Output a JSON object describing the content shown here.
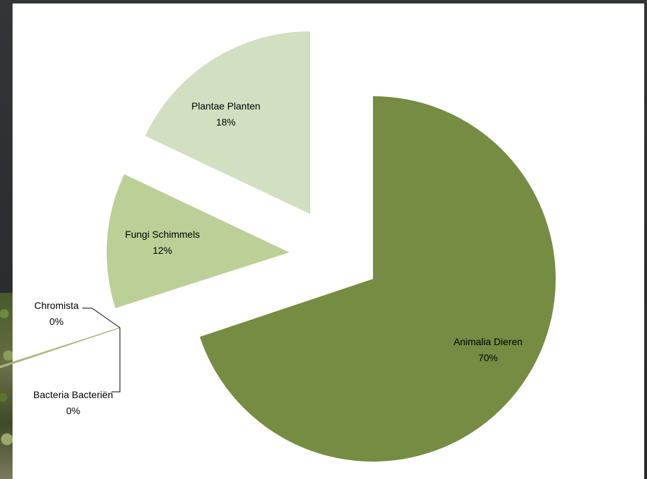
{
  "chart_data": {
    "type": "pie",
    "title": "",
    "exploded": true,
    "slices": [
      {
        "label": "Animalia Dieren",
        "percent_label": "70%",
        "value": 70,
        "color": "#758c42"
      },
      {
        "label": "Bacteria Bacteriën",
        "percent_label": "0%",
        "value": 0,
        "color": "#8a9a5b"
      },
      {
        "label": "Chromista",
        "percent_label": "0%",
        "value": 0.2,
        "color": "#a8b77f"
      },
      {
        "label": "Fungi Schimmels",
        "percent_label": "12%",
        "value": 12,
        "color": "#bccf97"
      },
      {
        "label": "Plantae Planten",
        "percent_label": "18%",
        "value": 18,
        "color": "#d2dfc1"
      }
    ],
    "legend": "none"
  }
}
